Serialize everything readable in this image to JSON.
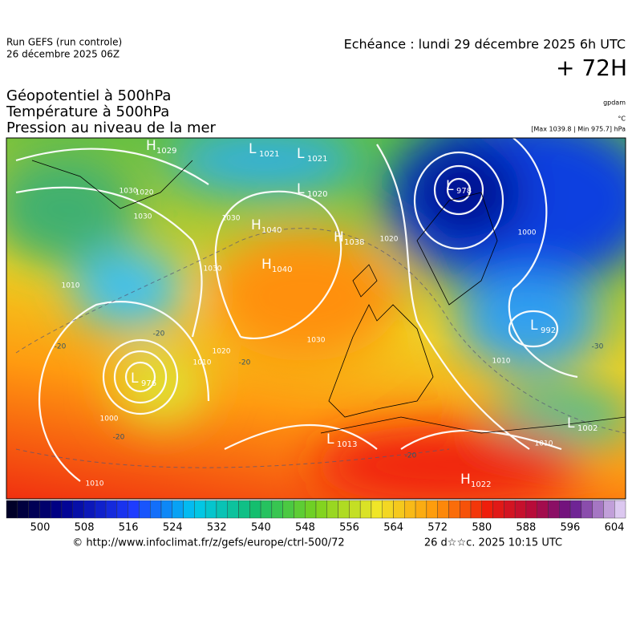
{
  "header": {
    "run": "Run GEFS (run controle)",
    "run_date": "26 décembre 2025 06Z",
    "echeance": "Echéance : lundi 29 décembre 2025 6h UTC",
    "lead": "+ 72H"
  },
  "titles": [
    "Géopotentiel à 500hPa",
    "Température à 500hPa",
    "Pression au niveau de la mer"
  ],
  "units": {
    "geopotential": "gpdam",
    "temperature": "°C",
    "pressure": "[Max 1039.8 | Min 975.7] hPa"
  },
  "centers": [
    {
      "kind": "H",
      "value": 1029
    },
    {
      "kind": "L",
      "value": 1021
    },
    {
      "kind": "L",
      "value": 1021
    },
    {
      "kind": "L",
      "value": 1020
    },
    {
      "kind": "L",
      "value": 978
    },
    {
      "kind": "H",
      "value": 1040
    },
    {
      "kind": "H",
      "value": 1038
    },
    {
      "kind": "H",
      "value": 1040
    },
    {
      "kind": "L",
      "value": 992
    },
    {
      "kind": "L",
      "value": 976
    },
    {
      "kind": "L",
      "value": 1013
    },
    {
      "kind": "L",
      "value": 1002
    },
    {
      "kind": "H",
      "value": 1022
    }
  ],
  "isobar_labels": [
    1030,
    1020,
    1030,
    1030,
    1010,
    1030,
    1020,
    1010,
    1000,
    1010,
    1030,
    1020,
    1000,
    1010,
    1010
  ],
  "temperature_labels": [
    -20,
    -20,
    -20,
    -20,
    -20,
    -30
  ],
  "colorbar": {
    "labels": [
      500,
      508,
      516,
      524,
      532,
      540,
      548,
      556,
      564,
      572,
      580,
      588,
      596,
      604
    ]
  },
  "footer": {
    "source": "© http://www.infoclimat.fr/z/gefs/europe/ctrl-500/72",
    "issued": "26 d☆☆c. 2025 10:15 UTC"
  }
}
